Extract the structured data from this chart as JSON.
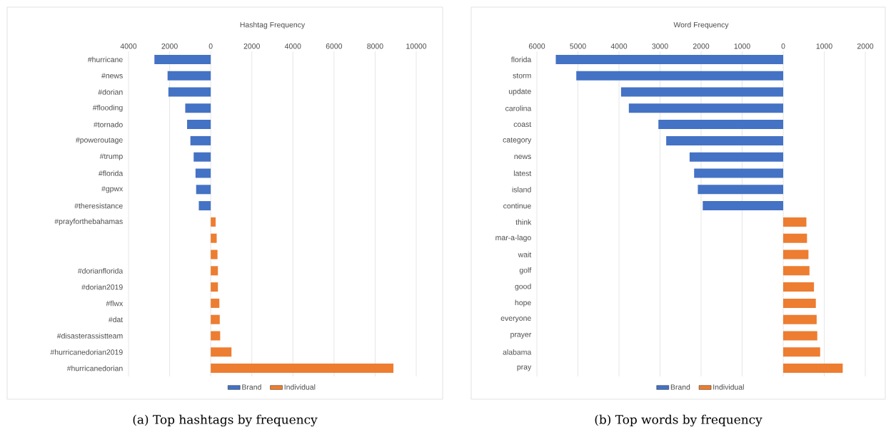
{
  "chart_data": [
    {
      "type": "bar",
      "orientation": "horizontal",
      "title": "Hashtag Frequency",
      "categories": [
        "#hurricane",
        "#news",
        "#dorian",
        "#flooding",
        "#tornado",
        "#poweroutage",
        "#trump",
        "#florida",
        "#gpwx",
        "#theresistance",
        "#prayforthebahamas",
        null,
        null,
        "#dorianflorida",
        "#dorian2019",
        "#flwx",
        "#dat",
        "#disasterassistteam",
        "#hurricanedorian2019",
        "#hurricanedorian"
      ],
      "series": [
        {
          "name": "Brand",
          "color": "#4472c4",
          "values": [
            -2740,
            -2100,
            -2060,
            -1240,
            -1150,
            -990,
            -830,
            -740,
            -710,
            -580,
            null,
            null,
            null,
            null,
            null,
            null,
            null,
            null,
            null,
            null
          ]
        },
        {
          "name": "Individual",
          "color": "#ed7d31",
          "values": [
            null,
            null,
            null,
            null,
            null,
            null,
            null,
            null,
            null,
            null,
            240,
            290,
            330,
            350,
            350,
            420,
            440,
            460,
            1010,
            8890
          ]
        }
      ],
      "xlim": [
        -4000,
        10000
      ],
      "xticks": [
        {
          "value": -4000,
          "label": "4000"
        },
        {
          "value": -2000,
          "label": "2000"
        },
        0,
        2000,
        4000,
        6000,
        8000,
        10000
      ],
      "grid": "x",
      "legend": "bottom",
      "annotations": [
        "(a) Top hashtags by frequency"
      ]
    },
    {
      "type": "bar",
      "orientation": "horizontal",
      "title": "Word Frequency",
      "categories": [
        "florida",
        "storm",
        "update",
        "carolina",
        "coast",
        "category",
        "news",
        "latest",
        "island",
        "continue",
        "think",
        "mar-a-lago",
        "wait",
        "golf",
        "good",
        "hope",
        "everyone",
        "prayer",
        "alabama",
        "pray"
      ],
      "series": [
        {
          "name": "Brand",
          "color": "#4472c4",
          "values": [
            -5540,
            -5040,
            -3950,
            -3760,
            -3040,
            -2850,
            -2280,
            -2170,
            -2080,
            -1960,
            null,
            null,
            null,
            null,
            null,
            null,
            null,
            null,
            null,
            null
          ]
        },
        {
          "name": "Individual",
          "color": "#ed7d31",
          "values": [
            null,
            null,
            null,
            null,
            null,
            null,
            null,
            null,
            null,
            null,
            565,
            580,
            615,
            640,
            750,
            795,
            815,
            830,
            900,
            1450
          ]
        }
      ],
      "xlim": [
        -6000,
        2000
      ],
      "xticks": [
        {
          "value": -6000,
          "label": "6000"
        },
        {
          "value": -5000,
          "label": "5000"
        },
        {
          "value": -4000,
          "label": "4000"
        },
        {
          "value": -3000,
          "label": "3000"
        },
        {
          "value": -2000,
          "label": "2000"
        },
        {
          "value": -1000,
          "label": "1000"
        },
        0,
        1000,
        2000
      ],
      "grid": "x",
      "legend": "bottom",
      "annotations": [
        "(b) Top words by frequency"
      ]
    }
  ]
}
